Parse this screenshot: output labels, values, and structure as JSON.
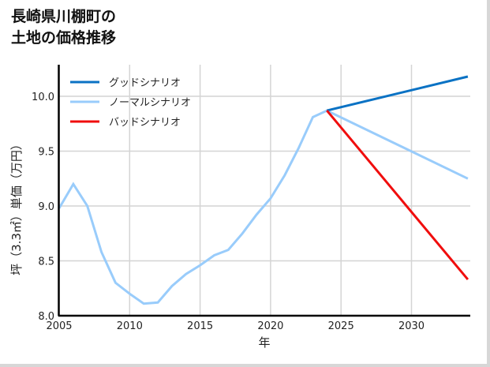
{
  "title_lines": [
    "長崎県川棚町の",
    "土地の価格推移"
  ],
  "chart_data": {
    "type": "line",
    "title": "長崎県川棚町の土地の価格推移",
    "xlabel": "年",
    "ylabel": "坪（3.3㎡）単価（万円）",
    "xlim": [
      2005,
      2034
    ],
    "ylim": [
      8.0,
      10.25
    ],
    "xticks": [
      2005,
      2010,
      2015,
      2020,
      2025,
      2030
    ],
    "yticks": [
      8.0,
      8.5,
      9.0,
      9.5,
      10.0
    ],
    "xtick_labels": [
      "2005",
      "2010",
      "2015",
      "2020",
      "2025",
      "2030"
    ],
    "ytick_labels": [
      "8.0",
      "8.5",
      "9.0",
      "9.5",
      "10.0"
    ],
    "grid": true,
    "legend_position": "upper left",
    "series": [
      {
        "name": "グッドシナリオ",
        "color": "#0a72c4",
        "x": [
          2024,
          2034
        ],
        "values": [
          9.87,
          10.18
        ]
      },
      {
        "name": "ノーマルシナリオ",
        "color": "#99ccfb",
        "x": [
          2005,
          2006,
          2007,
          2008,
          2009,
          2010,
          2011,
          2012,
          2013,
          2014,
          2015,
          2016,
          2017,
          2018,
          2019,
          2020,
          2021,
          2022,
          2023,
          2024,
          2034
        ],
        "values": [
          8.98,
          9.2,
          9.0,
          8.58,
          8.3,
          8.2,
          8.11,
          8.12,
          8.27,
          8.38,
          8.46,
          8.55,
          8.6,
          8.75,
          8.92,
          9.07,
          9.28,
          9.53,
          9.81,
          9.87,
          9.25
        ]
      },
      {
        "name": "バッドシナリオ",
        "color": "#f00d0d",
        "x": [
          2024,
          2034
        ],
        "values": [
          9.87,
          8.33
        ]
      }
    ]
  },
  "legend": {
    "good": "グッドシナリオ",
    "normal": "ノーマルシナリオ",
    "bad": "バッドシナリオ"
  },
  "axes": {
    "xlabel": "年",
    "ylabel": "坪（3.3㎡）単価（万円）"
  }
}
